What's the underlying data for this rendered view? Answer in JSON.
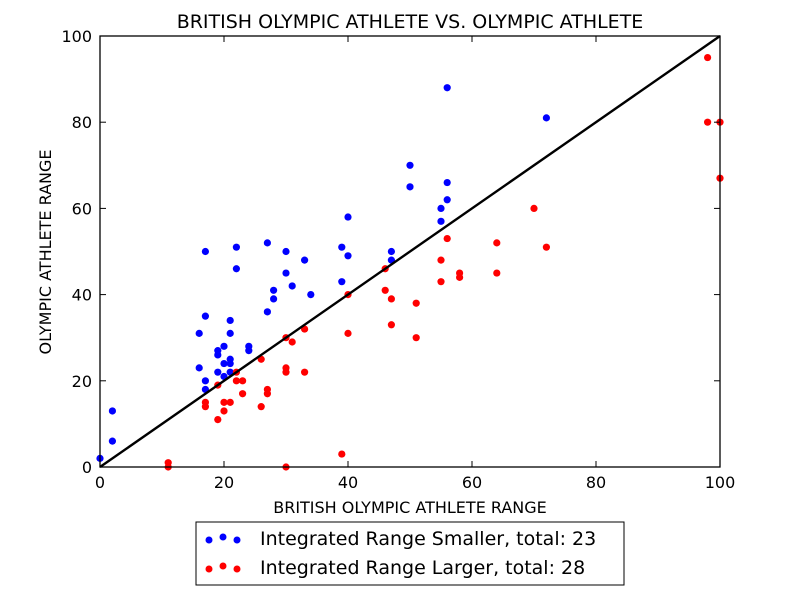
{
  "chart_data": {
    "type": "scatter",
    "title": "BRITISH OLYMPIC ATHLETE VS. OLYMPIC ATHLETE",
    "xlabel": "BRITISH OLYMPIC ATHLETE RANGE",
    "ylabel": "OLYMPIC ATHLETE RANGE",
    "xlim": [
      0,
      100
    ],
    "ylim": [
      0,
      100
    ],
    "xticks": [
      "0",
      "20",
      "40",
      "60",
      "80",
      "100"
    ],
    "yticks": [
      "0",
      "20",
      "40",
      "60",
      "80",
      "100"
    ],
    "grid": false,
    "legend_position": "bottom-center, outside plot",
    "reference_line": {
      "from": [
        0,
        0
      ],
      "to": [
        100,
        100
      ],
      "color": "#000000"
    },
    "series": [
      {
        "name": "Integrated Range Smaller, total: 23",
        "color": "#0000ff",
        "points": [
          [
            0,
            2
          ],
          [
            2,
            13
          ],
          [
            2,
            6
          ],
          [
            16,
            31
          ],
          [
            16,
            23
          ],
          [
            17,
            50
          ],
          [
            17,
            35
          ],
          [
            17,
            20
          ],
          [
            17,
            18
          ],
          [
            19,
            27
          ],
          [
            19,
            26
          ],
          [
            19,
            22
          ],
          [
            20,
            28
          ],
          [
            20,
            24
          ],
          [
            20,
            21
          ],
          [
            21,
            34
          ],
          [
            21,
            31
          ],
          [
            21,
            25
          ],
          [
            21,
            24
          ],
          [
            21,
            22
          ],
          [
            22,
            51
          ],
          [
            22,
            46
          ],
          [
            24,
            28
          ],
          [
            24,
            27
          ],
          [
            27,
            52
          ],
          [
            27,
            36
          ],
          [
            28,
            41
          ],
          [
            28,
            39
          ],
          [
            30,
            50
          ],
          [
            30,
            45
          ],
          [
            31,
            42
          ],
          [
            33,
            48
          ],
          [
            34,
            40
          ],
          [
            39,
            51
          ],
          [
            39,
            43
          ],
          [
            40,
            58
          ],
          [
            40,
            49
          ],
          [
            47,
            50
          ],
          [
            47,
            48
          ],
          [
            50,
            70
          ],
          [
            50,
            65
          ],
          [
            55,
            60
          ],
          [
            55,
            57
          ],
          [
            56,
            88
          ],
          [
            56,
            66
          ],
          [
            56,
            62
          ],
          [
            72,
            81
          ]
        ]
      },
      {
        "name": "Integrated Range Larger, total: 28",
        "color": "#ff0000",
        "points": [
          [
            11,
            1
          ],
          [
            11,
            0
          ],
          [
            17,
            15
          ],
          [
            17,
            14
          ],
          [
            19,
            19
          ],
          [
            19,
            11
          ],
          [
            20,
            15
          ],
          [
            20,
            13
          ],
          [
            21,
            15
          ],
          [
            22,
            22
          ],
          [
            22,
            20
          ],
          [
            23,
            20
          ],
          [
            23,
            17
          ],
          [
            26,
            25
          ],
          [
            26,
            14
          ],
          [
            27,
            18
          ],
          [
            27,
            17
          ],
          [
            30,
            30
          ],
          [
            30,
            23
          ],
          [
            30,
            22
          ],
          [
            30,
            0
          ],
          [
            31,
            29
          ],
          [
            33,
            32
          ],
          [
            33,
            22
          ],
          [
            39,
            3
          ],
          [
            40,
            40
          ],
          [
            40,
            31
          ],
          [
            46,
            46
          ],
          [
            46,
            41
          ],
          [
            47,
            39
          ],
          [
            47,
            33
          ],
          [
            51,
            38
          ],
          [
            51,
            30
          ],
          [
            55,
            48
          ],
          [
            55,
            43
          ],
          [
            56,
            53
          ],
          [
            58,
            45
          ],
          [
            58,
            44
          ],
          [
            64,
            52
          ],
          [
            64,
            45
          ],
          [
            70,
            60
          ],
          [
            72,
            51
          ],
          [
            98,
            95
          ],
          [
            98,
            80
          ],
          [
            100,
            80
          ],
          [
            100,
            67
          ]
        ]
      }
    ]
  }
}
